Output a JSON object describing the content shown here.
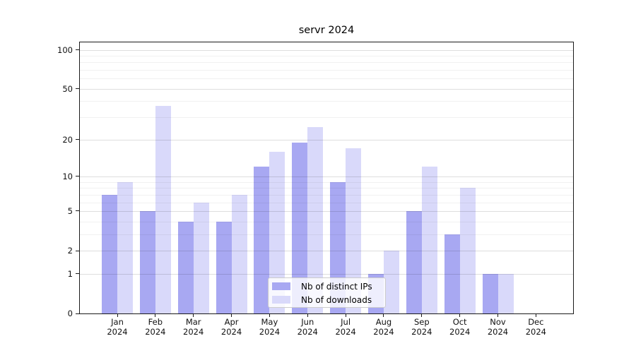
{
  "title": "servr 2024",
  "legend": {
    "items": [
      {
        "label": "Nb of distinct IPs",
        "color": "#a8a8f2"
      },
      {
        "label": "Nb of downloads",
        "color": "#d9d9fa"
      }
    ]
  },
  "chart_data": {
    "type": "bar",
    "title": "servr 2024",
    "categories": [
      "Jan 2024",
      "Feb 2024",
      "Mar 2024",
      "Apr 2024",
      "May 2024",
      "Jun 2024",
      "Jul 2024",
      "Aug 2024",
      "Sep 2024",
      "Oct 2024",
      "Nov 2024",
      "Dec 2024"
    ],
    "series": [
      {
        "name": "Nb of distinct IPs",
        "color": "#a8a8f2",
        "values": [
          7,
          5,
          4,
          4,
          12,
          19,
          9,
          1,
          5,
          3,
          1,
          0
        ]
      },
      {
        "name": "Nb of downloads",
        "color": "#d9d9fa",
        "values": [
          9,
          37,
          6,
          7,
          16,
          25,
          17,
          2,
          12,
          8,
          1,
          0
        ]
      }
    ],
    "xlabel": "",
    "ylabel": "",
    "yscale": "log1p",
    "yticks": [
      0,
      1,
      2,
      5,
      10,
      20,
      50,
      100
    ],
    "yticks_minor": [
      3,
      4,
      6,
      7,
      8,
      9,
      30,
      40,
      60,
      70,
      80,
      90
    ],
    "ylim": [
      0,
      114
    ],
    "grid": true,
    "grid_above_bars": true,
    "legend_position": "lower center"
  }
}
